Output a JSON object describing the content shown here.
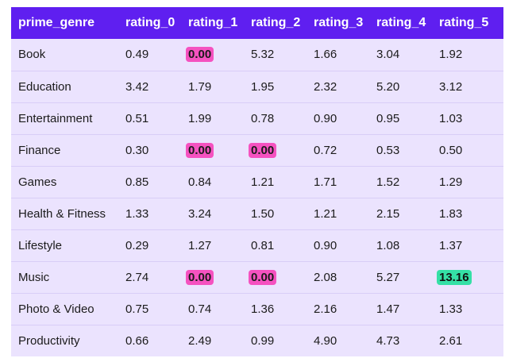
{
  "table": {
    "columns": [
      "prime_genre",
      "rating_0",
      "rating_1",
      "rating_2",
      "rating_3",
      "rating_4",
      "rating_5"
    ],
    "rows": [
      {
        "genre": "Book",
        "values": [
          {
            "v": "0.49"
          },
          {
            "v": "0.00",
            "hl": "pink"
          },
          {
            "v": "5.32"
          },
          {
            "v": "1.66"
          },
          {
            "v": "3.04"
          },
          {
            "v": "1.92"
          }
        ]
      },
      {
        "genre": "Education",
        "values": [
          {
            "v": "3.42"
          },
          {
            "v": "1.79"
          },
          {
            "v": "1.95"
          },
          {
            "v": "2.32"
          },
          {
            "v": "5.20"
          },
          {
            "v": "3.12"
          }
        ]
      },
      {
        "genre": "Entertainment",
        "values": [
          {
            "v": "0.51"
          },
          {
            "v": "1.99"
          },
          {
            "v": "0.78"
          },
          {
            "v": "0.90"
          },
          {
            "v": "0.95"
          },
          {
            "v": "1.03"
          }
        ]
      },
      {
        "genre": "Finance",
        "values": [
          {
            "v": "0.30"
          },
          {
            "v": "0.00",
            "hl": "pink"
          },
          {
            "v": "0.00",
            "hl": "pink"
          },
          {
            "v": "0.72"
          },
          {
            "v": "0.53"
          },
          {
            "v": "0.50"
          }
        ]
      },
      {
        "genre": "Games",
        "values": [
          {
            "v": "0.85"
          },
          {
            "v": "0.84"
          },
          {
            "v": "1.21"
          },
          {
            "v": "1.71"
          },
          {
            "v": "1.52"
          },
          {
            "v": "1.29"
          }
        ]
      },
      {
        "genre": "Health & Fitness",
        "values": [
          {
            "v": "1.33"
          },
          {
            "v": "3.24"
          },
          {
            "v": "1.50"
          },
          {
            "v": "1.21"
          },
          {
            "v": "2.15"
          },
          {
            "v": "1.83"
          }
        ]
      },
      {
        "genre": "Lifestyle",
        "values": [
          {
            "v": "0.29"
          },
          {
            "v": "1.27"
          },
          {
            "v": "0.81"
          },
          {
            "v": "0.90"
          },
          {
            "v": "1.08"
          },
          {
            "v": "1.37"
          }
        ]
      },
      {
        "genre": "Music",
        "values": [
          {
            "v": "2.74"
          },
          {
            "v": "0.00",
            "hl": "pink"
          },
          {
            "v": "0.00",
            "hl": "pink"
          },
          {
            "v": "2.08"
          },
          {
            "v": "5.27"
          },
          {
            "v": "13.16",
            "hl": "green"
          }
        ]
      },
      {
        "genre": "Photo & Video",
        "values": [
          {
            "v": "0.75"
          },
          {
            "v": "0.74"
          },
          {
            "v": "1.36"
          },
          {
            "v": "2.16"
          },
          {
            "v": "1.47"
          },
          {
            "v": "1.33"
          }
        ]
      },
      {
        "genre": "Productivity",
        "values": [
          {
            "v": "0.66"
          },
          {
            "v": "2.49"
          },
          {
            "v": "0.99"
          },
          {
            "v": "4.90"
          },
          {
            "v": "4.73"
          },
          {
            "v": "2.61"
          }
        ]
      }
    ]
  },
  "colors": {
    "header_bg": "#5f1ff0",
    "row_bg": "#ebe3fe",
    "highlight_min": "#f552c0",
    "highlight_max": "#35e0a6"
  }
}
